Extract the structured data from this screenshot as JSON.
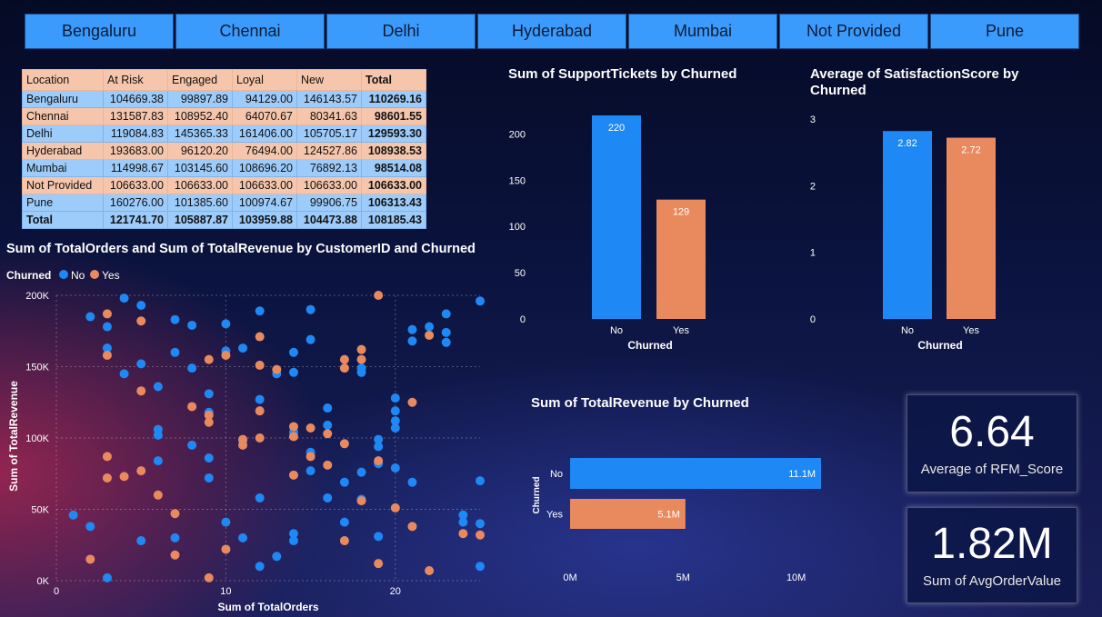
{
  "slicer": [
    "Bengaluru",
    "Chennai",
    "Delhi",
    "Hyderabad",
    "Mumbai",
    "Not Provided",
    "Pune"
  ],
  "matrix": {
    "headers": [
      "Location",
      "At Risk",
      "Engaged",
      "Loyal",
      "New",
      "Total"
    ],
    "rows": [
      [
        "Bengaluru",
        "104669.38",
        "99897.89",
        "94129.00",
        "146143.57",
        "110269.16"
      ],
      [
        "Chennai",
        "131587.83",
        "108952.40",
        "64070.67",
        "80341.63",
        "98601.55"
      ],
      [
        "Delhi",
        "119084.83",
        "145365.33",
        "161406.00",
        "105705.17",
        "129593.30"
      ],
      [
        "Hyderabad",
        "193683.00",
        "96120.20",
        "76494.00",
        "124527.86",
        "108938.53"
      ],
      [
        "Mumbai",
        "114998.67",
        "103145.60",
        "108696.20",
        "76892.13",
        "98514.08"
      ],
      [
        "Not Provided",
        "106633.00",
        "106633.00",
        "106633.00",
        "106633.00",
        "106633.00"
      ],
      [
        "Pune",
        "160276.00",
        "101385.60",
        "100974.67",
        "99906.75",
        "106313.43"
      ]
    ],
    "total": [
      "Total",
      "121741.70",
      "105887.87",
      "103959.88",
      "104473.88",
      "108185.43"
    ]
  },
  "colors": {
    "no": "#1e88f5",
    "yes": "#e98a5e"
  },
  "support_chart": {
    "title": "Sum of SupportTickets by Churned",
    "chart_data": {
      "type": "bar",
      "categories": [
        "No",
        "Yes"
      ],
      "values": [
        220,
        129
      ],
      "xlabel": "Churned",
      "ylabel": "",
      "ylim": [
        0,
        220
      ],
      "yticks": [
        "0",
        "50",
        "100",
        "150",
        "200"
      ],
      "data_labels": [
        "220",
        "129"
      ]
    }
  },
  "satisfaction_chart": {
    "title": "Average of SatisfactionScore by Churned",
    "chart_data": {
      "type": "bar",
      "categories": [
        "No",
        "Yes"
      ],
      "values": [
        2.82,
        2.72
      ],
      "xlabel": "Churned",
      "ylabel": "",
      "ylim": [
        0,
        3
      ],
      "yticks": [
        "0",
        "1",
        "2",
        "3"
      ],
      "data_labels": [
        "2.82",
        "2.72"
      ]
    }
  },
  "revenue_chart": {
    "title": "Sum of TotalRevenue by Churned",
    "chart_data": {
      "type": "bar",
      "orientation": "horizontal",
      "categories": [
        "No",
        "Yes"
      ],
      "values": [
        11.1,
        5.1
      ],
      "unit": "M",
      "xlabel": "",
      "ylabel": "Churned",
      "xlim": [
        0,
        11.1
      ],
      "xticks": [
        "0M",
        "5M",
        "10M"
      ],
      "data_labels": [
        "11.1M",
        "5.1M"
      ]
    }
  },
  "scatter_chart": {
    "title": "Sum of TotalOrders and Sum of TotalRevenue by CustomerID and Churned",
    "legend_title": "Churned",
    "legend": [
      "No",
      "Yes"
    ],
    "chart_data": {
      "type": "scatter",
      "xlabel": "Sum of TotalOrders",
      "ylabel": "Sum of TotalRevenue",
      "xlim": [
        0,
        25
      ],
      "ylim": [
        0,
        200000
      ],
      "xticks": [
        "0",
        "10",
        "20"
      ],
      "yticks": [
        "0K",
        "50K",
        "100K",
        "150K",
        "200K"
      ],
      "series": [
        {
          "name": "No",
          "points": [
            [
              1,
              46000
            ],
            [
              2,
              185000
            ],
            [
              2,
              38000
            ],
            [
              3,
              178000
            ],
            [
              3,
              163000
            ],
            [
              3,
              2000
            ],
            [
              4,
              145000
            ],
            [
              4,
              198000
            ],
            [
              5,
              28000
            ],
            [
              5,
              152000
            ],
            [
              5,
              193000
            ],
            [
              6,
              106000
            ],
            [
              6,
              102000
            ],
            [
              6,
              136000
            ],
            [
              6,
              84000
            ],
            [
              7,
              30000
            ],
            [
              7,
              160000
            ],
            [
              7,
              183000
            ],
            [
              8,
              179000
            ],
            [
              8,
              95000
            ],
            [
              8,
              149000
            ],
            [
              9,
              131000
            ],
            [
              9,
              86000
            ],
            [
              9,
              72000
            ],
            [
              9,
              118000
            ],
            [
              10,
              41000
            ],
            [
              10,
              180000
            ],
            [
              10,
              161000
            ],
            [
              11,
              163000
            ],
            [
              11,
              30000
            ],
            [
              11,
              98000
            ],
            [
              12,
              189000
            ],
            [
              12,
              127000
            ],
            [
              12,
              58000
            ],
            [
              12,
              10000
            ],
            [
              13,
              17000
            ],
            [
              13,
              145000
            ],
            [
              14,
              28000
            ],
            [
              14,
              33000
            ],
            [
              14,
              146000
            ],
            [
              14,
              104000
            ],
            [
              14,
              160000
            ],
            [
              15,
              77000
            ],
            [
              15,
              90000
            ],
            [
              15,
              169000
            ],
            [
              15,
              190000
            ],
            [
              16,
              58000
            ],
            [
              16,
              121000
            ],
            [
              16,
              109000
            ],
            [
              17,
              69000
            ],
            [
              17,
              41000
            ],
            [
              18,
              146000
            ],
            [
              18,
              76000
            ],
            [
              18,
              57000
            ],
            [
              18,
              149000
            ],
            [
              19,
              99000
            ],
            [
              19,
              94000
            ],
            [
              19,
              82000
            ],
            [
              19,
              31000
            ],
            [
              20,
              128000
            ],
            [
              20,
              119000
            ],
            [
              20,
              112000
            ],
            [
              20,
              107000
            ],
            [
              20,
              79000
            ],
            [
              21,
              176000
            ],
            [
              21,
              168000
            ],
            [
              21,
              69000
            ],
            [
              22,
              178000
            ],
            [
              23,
              187000
            ],
            [
              23,
              174000
            ],
            [
              23,
              167000
            ],
            [
              24,
              46000
            ],
            [
              24,
              41000
            ],
            [
              25,
              196000
            ],
            [
              25,
              70000
            ],
            [
              25,
              40000
            ],
            [
              25,
              10000
            ]
          ]
        },
        {
          "name": "Yes",
          "points": [
            [
              2,
              15000
            ],
            [
              3,
              187000
            ],
            [
              3,
              158000
            ],
            [
              3,
              72000
            ],
            [
              3,
              87000
            ],
            [
              4,
              73000
            ],
            [
              5,
              182000
            ],
            [
              5,
              133000
            ],
            [
              5,
              77000
            ],
            [
              6,
              60000
            ],
            [
              7,
              47000
            ],
            [
              7,
              18000
            ],
            [
              8,
              122000
            ],
            [
              9,
              2000
            ],
            [
              9,
              155000
            ],
            [
              9,
              111000
            ],
            [
              9,
              116000
            ],
            [
              10,
              158000
            ],
            [
              10,
              22000
            ],
            [
              11,
              99000
            ],
            [
              11,
              95000
            ],
            [
              12,
              171000
            ],
            [
              12,
              151000
            ],
            [
              12,
              119000
            ],
            [
              12,
              100000
            ],
            [
              13,
              148000
            ],
            [
              14,
              108000
            ],
            [
              14,
              101000
            ],
            [
              14,
              74000
            ],
            [
              15,
              87000
            ],
            [
              15,
              107000
            ],
            [
              16,
              81000
            ],
            [
              16,
              103000
            ],
            [
              17,
              155000
            ],
            [
              17,
              149000
            ],
            [
              17,
              96000
            ],
            [
              17,
              28000
            ],
            [
              18,
              155000
            ],
            [
              18,
              162000
            ],
            [
              18,
              56000
            ],
            [
              19,
              84000
            ],
            [
              19,
              200000
            ],
            [
              19,
              12000
            ],
            [
              20,
              51000
            ],
            [
              21,
              125000
            ],
            [
              21,
              38000
            ],
            [
              22,
              172000
            ],
            [
              22,
              7000
            ],
            [
              24,
              33000
            ],
            [
              25,
              32000
            ]
          ]
        }
      ]
    }
  },
  "kpi": [
    {
      "value": "6.64",
      "label": "Average of RFM_Score"
    },
    {
      "value": "1.82M",
      "label": "Sum of AvgOrderValue"
    }
  ]
}
